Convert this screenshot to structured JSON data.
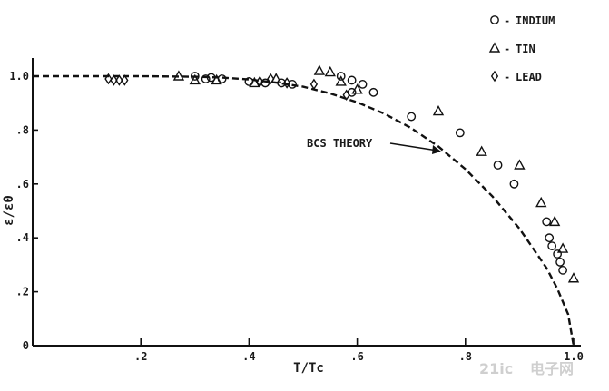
{
  "chart_data": {
    "type": "scatter",
    "xlabel": "T/Tc",
    "ylabel": "ε/ε0",
    "xlim": [
      0,
      1.0
    ],
    "ylim": [
      0,
      1.0
    ],
    "x_ticks": [
      {
        "value": 0.2,
        "label": ".2"
      },
      {
        "value": 0.4,
        "label": ".4"
      },
      {
        "value": 0.6,
        "label": ".6"
      },
      {
        "value": 0.8,
        "label": ".8"
      },
      {
        "value": 1.0,
        "label": "1.0"
      }
    ],
    "y_ticks": [
      {
        "value": 0.0,
        "label": "0"
      },
      {
        "value": 0.2,
        "label": ".2"
      },
      {
        "value": 0.4,
        "label": ".4"
      },
      {
        "value": 0.6,
        "label": ".6"
      },
      {
        "value": 0.8,
        "label": ".8"
      },
      {
        "value": 1.0,
        "label": "1.0"
      }
    ],
    "grid": false,
    "legend_position": "top-right",
    "series": [
      {
        "name": "INDIUM",
        "marker": "circle",
        "points": [
          {
            "x": 0.3,
            "y": 1.0
          },
          {
            "x": 0.32,
            "y": 0.99
          },
          {
            "x": 0.33,
            "y": 0.995
          },
          {
            "x": 0.35,
            "y": 0.99
          },
          {
            "x": 0.4,
            "y": 0.98
          },
          {
            "x": 0.43,
            "y": 0.975
          },
          {
            "x": 0.46,
            "y": 0.975
          },
          {
            "x": 0.48,
            "y": 0.97
          },
          {
            "x": 0.57,
            "y": 1.0
          },
          {
            "x": 0.59,
            "y": 0.985
          },
          {
            "x": 0.61,
            "y": 0.97
          },
          {
            "x": 0.63,
            "y": 0.94
          },
          {
            "x": 0.59,
            "y": 0.94
          },
          {
            "x": 0.7,
            "y": 0.85
          },
          {
            "x": 0.79,
            "y": 0.79
          },
          {
            "x": 0.86,
            "y": 0.67
          },
          {
            "x": 0.89,
            "y": 0.6
          },
          {
            "x": 0.95,
            "y": 0.46
          },
          {
            "x": 0.955,
            "y": 0.4
          },
          {
            "x": 0.96,
            "y": 0.37
          },
          {
            "x": 0.97,
            "y": 0.34
          },
          {
            "x": 0.975,
            "y": 0.31
          },
          {
            "x": 0.98,
            "y": 0.28
          }
        ]
      },
      {
        "name": "TIN",
        "marker": "triangle",
        "points": [
          {
            "x": 0.27,
            "y": 1.0
          },
          {
            "x": 0.3,
            "y": 0.985
          },
          {
            "x": 0.34,
            "y": 0.985
          },
          {
            "x": 0.41,
            "y": 0.975
          },
          {
            "x": 0.45,
            "y": 0.99
          },
          {
            "x": 0.53,
            "y": 1.02
          },
          {
            "x": 0.55,
            "y": 1.015
          },
          {
            "x": 0.57,
            "y": 0.98
          },
          {
            "x": 0.6,
            "y": 0.95
          },
          {
            "x": 0.75,
            "y": 0.87
          },
          {
            "x": 0.83,
            "y": 0.72
          },
          {
            "x": 0.9,
            "y": 0.67
          },
          {
            "x": 0.94,
            "y": 0.53
          },
          {
            "x": 0.965,
            "y": 0.46
          },
          {
            "x": 0.98,
            "y": 0.36
          },
          {
            "x": 1.0,
            "y": 0.25
          }
        ]
      },
      {
        "name": "LEAD",
        "marker": "diamond",
        "points": [
          {
            "x": 0.14,
            "y": 0.99
          },
          {
            "x": 0.15,
            "y": 0.985
          },
          {
            "x": 0.16,
            "y": 0.985
          },
          {
            "x": 0.17,
            "y": 0.985
          },
          {
            "x": 0.42,
            "y": 0.98
          },
          {
            "x": 0.44,
            "y": 0.99
          },
          {
            "x": 0.47,
            "y": 0.975
          },
          {
            "x": 0.52,
            "y": 0.97
          },
          {
            "x": 0.58,
            "y": 0.93
          }
        ]
      }
    ],
    "theory_curve": {
      "label": "BCS THEORY",
      "style": "dashed",
      "points": [
        {
          "x": 0.0,
          "y": 1.0
        },
        {
          "x": 0.1,
          "y": 1.0
        },
        {
          "x": 0.2,
          "y": 1.0
        },
        {
          "x": 0.3,
          "y": 0.998
        },
        {
          "x": 0.35,
          "y": 0.995
        },
        {
          "x": 0.4,
          "y": 0.988
        },
        {
          "x": 0.45,
          "y": 0.976
        },
        {
          "x": 0.5,
          "y": 0.961
        },
        {
          "x": 0.55,
          "y": 0.936
        },
        {
          "x": 0.6,
          "y": 0.903
        },
        {
          "x": 0.65,
          "y": 0.861
        },
        {
          "x": 0.7,
          "y": 0.807
        },
        {
          "x": 0.75,
          "y": 0.739
        },
        {
          "x": 0.8,
          "y": 0.655
        },
        {
          "x": 0.85,
          "y": 0.554
        },
        {
          "x": 0.9,
          "y": 0.434
        },
        {
          "x": 0.95,
          "y": 0.288
        },
        {
          "x": 0.97,
          "y": 0.211
        },
        {
          "x": 0.99,
          "y": 0.116
        },
        {
          "x": 1.0,
          "y": 0.0
        }
      ]
    }
  },
  "watermark": {
    "text": "21ic",
    "subtext": "电子网"
  }
}
